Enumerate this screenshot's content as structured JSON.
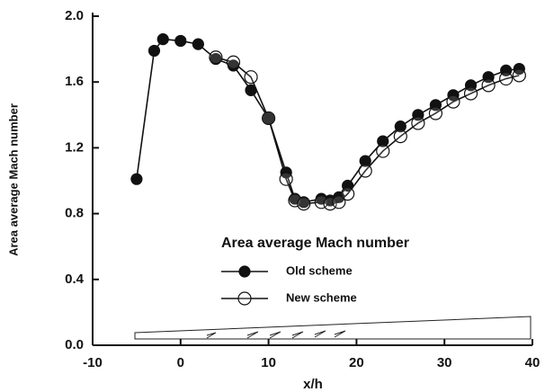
{
  "chart_data": {
    "type": "line",
    "x_label": "x/h",
    "y_label": "Area average Mach number",
    "legend_title": "Area average Mach number",
    "xlim": [
      -10,
      40
    ],
    "xticks": [
      -10,
      0,
      10,
      20,
      30,
      40
    ],
    "ylim": [
      0,
      2
    ],
    "yticks": [
      {
        "value": 0,
        "label": "0.0"
      },
      0.4,
      0.8,
      1.2,
      1.6,
      {
        "value": 2,
        "label": "2.0"
      }
    ],
    "series": [
      {
        "name": "Old scheme",
        "color": "#111111",
        "marker": "filled",
        "x": [
          -5,
          -3,
          -2,
          0,
          2,
          4,
          6,
          8,
          10,
          12,
          13,
          14,
          16,
          17,
          18,
          19,
          21,
          23,
          25,
          27,
          29,
          31,
          33,
          35,
          37,
          38.5
        ],
        "values": [
          1.01,
          1.79,
          1.86,
          1.85,
          1.83,
          1.74,
          1.7,
          1.55,
          1.38,
          1.05,
          0.89,
          0.87,
          0.89,
          0.88,
          0.9,
          0.97,
          1.12,
          1.24,
          1.33,
          1.4,
          1.46,
          1.52,
          1.58,
          1.63,
          1.67,
          1.68
        ]
      },
      {
        "name": "New scheme",
        "color": "#111111",
        "marker": "open",
        "x": [
          4,
          6,
          8,
          10,
          12,
          13,
          14,
          16,
          17,
          18,
          19,
          21,
          23,
          25,
          27,
          29,
          31,
          33,
          35,
          37,
          38.5
        ],
        "values": [
          1.75,
          1.72,
          1.63,
          1.38,
          1.01,
          0.88,
          0.86,
          0.87,
          0.86,
          0.87,
          0.92,
          1.06,
          1.18,
          1.27,
          1.35,
          1.41,
          1.48,
          1.53,
          1.58,
          1.62,
          1.64
        ]
      }
    ]
  }
}
